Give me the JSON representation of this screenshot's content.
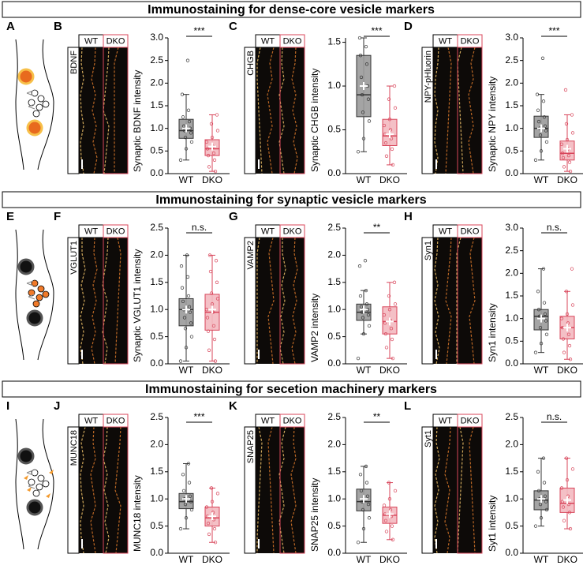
{
  "sections": [
    {
      "title": "Immunostaining for dense-core vesicle markers",
      "letter": "A"
    },
    {
      "title": "Immunostaining for synaptic vesicle markers",
      "letter": "E"
    },
    {
      "title": "Immunostaining for secetion machinery markers",
      "letter": "I"
    }
  ],
  "chart_data": [
    {
      "type": "box",
      "letter": "B",
      "image_label": "BDNF",
      "image_groups": [
        "WT",
        "DKO"
      ],
      "ylabel": "Synaptic BDNF intensity",
      "categories": [
        "WT",
        "DKO"
      ],
      "colors": [
        "#9a9a9a",
        "#f3b9c0"
      ],
      "edge_colors": [
        "#333333",
        "#d8455a"
      ],
      "significance": "***",
      "ylim": [
        0,
        3
      ],
      "yticks": [
        {
          "value": 0,
          "label": "0.0"
        },
        {
          "value": 0.5,
          "label": "0.5"
        },
        {
          "value": 1,
          "label": "1.0"
        },
        {
          "value": 1.5,
          "label": "1.5"
        },
        {
          "value": 2,
          "label": "2.0"
        },
        {
          "value": 2.5,
          "label": "2.5"
        },
        {
          "value": 3,
          "label": "3.0"
        }
      ],
      "boxes": [
        {
          "whisker_low": 0.3,
          "q1": 0.78,
          "median": 0.95,
          "q3": 1.2,
          "whisker_high": 1.75,
          "mean": 1.0,
          "points": [
            0.3,
            0.55,
            0.7,
            0.8,
            0.9,
            0.95,
            1.0,
            1.05,
            1.15,
            1.25,
            1.4,
            1.75,
            2.5
          ]
        },
        {
          "whisker_low": 0.05,
          "q1": 0.4,
          "median": 0.55,
          "q3": 0.75,
          "whisker_high": 1.3,
          "mean": 0.6,
          "points": [
            0.05,
            0.15,
            0.3,
            0.4,
            0.45,
            0.55,
            0.6,
            0.7,
            0.8,
            0.95,
            1.1,
            1.3
          ]
        }
      ]
    },
    {
      "type": "box",
      "letter": "C",
      "image_label": "CHGB",
      "image_groups": [
        "WT",
        "DKO"
      ],
      "ylabel": "Synaptic CHGB intensity",
      "categories": [
        "WT",
        "DKO"
      ],
      "colors": [
        "#9a9a9a",
        "#f3b9c0"
      ],
      "edge_colors": [
        "#333333",
        "#d8455a"
      ],
      "significance": "***",
      "ylim": [
        0,
        1.55
      ],
      "yticks": [
        {
          "value": 0,
          "label": "0.0"
        },
        {
          "value": 0.5,
          "label": "0.5"
        },
        {
          "value": 1,
          "label": "1.0"
        },
        {
          "value": 1.5,
          "label": "1.5"
        }
      ],
      "boxes": [
        {
          "whisker_low": 0.25,
          "q1": 0.65,
          "median": 0.9,
          "q3": 1.35,
          "whisker_high": 1.55,
          "mean": 1.0,
          "points": [
            0.25,
            0.4,
            0.6,
            0.7,
            0.85,
            0.9,
            1.0,
            1.1,
            1.25,
            1.35,
            1.45,
            1.55
          ]
        },
        {
          "whisker_low": 0.1,
          "q1": 0.32,
          "median": 0.43,
          "q3": 0.62,
          "whisker_high": 1.0,
          "mean": 0.45,
          "points": [
            0.1,
            0.2,
            0.28,
            0.35,
            0.4,
            0.45,
            0.5,
            0.55,
            0.62,
            0.75,
            0.85,
            1.0
          ]
        }
      ]
    },
    {
      "type": "box",
      "letter": "D",
      "image_label": "NPY-pHluorin",
      "image_groups": [
        "WT",
        "DKO"
      ],
      "ylabel": "Synaptic NPY intensity",
      "categories": [
        "WT",
        "DKO"
      ],
      "colors": [
        "#9a9a9a",
        "#f3b9c0"
      ],
      "edge_colors": [
        "#333333",
        "#d8455a"
      ],
      "significance": "***",
      "ylim": [
        0,
        3
      ],
      "yticks": [
        {
          "value": 0,
          "label": "0.0"
        },
        {
          "value": 0.5,
          "label": "0.5"
        },
        {
          "value": 1,
          "label": "1.0"
        },
        {
          "value": 1.5,
          "label": "1.5"
        },
        {
          "value": 2,
          "label": "2.0"
        },
        {
          "value": 2.5,
          "label": "2.5"
        },
        {
          "value": 3,
          "label": "3.0"
        }
      ],
      "boxes": [
        {
          "whisker_low": 0.3,
          "q1": 0.8,
          "median": 1.0,
          "q3": 1.27,
          "whisker_high": 1.75,
          "mean": 1.0,
          "points": [
            0.3,
            0.5,
            0.7,
            0.85,
            0.95,
            1.0,
            1.05,
            1.15,
            1.25,
            1.4,
            1.6,
            1.75,
            2.55
          ]
        },
        {
          "whisker_low": 0.05,
          "q1": 0.3,
          "median": 0.45,
          "q3": 0.72,
          "whisker_high": 1.3,
          "mean": 0.55,
          "points": [
            0.05,
            0.15,
            0.25,
            0.35,
            0.4,
            0.45,
            0.55,
            0.65,
            0.75,
            0.9,
            1.1,
            1.3,
            1.85
          ]
        }
      ]
    },
    {
      "type": "box",
      "letter": "F",
      "image_label": "VGLUT1",
      "image_groups": [
        "WT",
        "DKO"
      ],
      "ylabel": "Synaptic VGLUT1 intensity",
      "categories": [
        "WT",
        "DKO"
      ],
      "colors": [
        "#9a9a9a",
        "#f3b9c0"
      ],
      "edge_colors": [
        "#333333",
        "#d8455a"
      ],
      "significance": "n.s.",
      "ylim": [
        0,
        2.5
      ],
      "yticks": [
        {
          "value": 0,
          "label": "0.0"
        },
        {
          "value": 0.5,
          "label": "0.5"
        },
        {
          "value": 1,
          "label": "1.0"
        },
        {
          "value": 1.5,
          "label": "1.5"
        },
        {
          "value": 2,
          "label": "2.0"
        },
        {
          "value": 2.5,
          "label": "2.5"
        }
      ],
      "boxes": [
        {
          "whisker_low": 0.05,
          "q1": 0.7,
          "median": 1.0,
          "q3": 1.2,
          "whisker_high": 2.0,
          "mean": 1.0,
          "points": [
            0.05,
            0.3,
            0.5,
            0.65,
            0.75,
            0.85,
            0.95,
            1.0,
            1.05,
            1.15,
            1.25,
            1.4,
            1.6,
            1.8,
            2.0
          ]
        },
        {
          "whisker_low": 0.05,
          "q1": 0.62,
          "median": 0.95,
          "q3": 1.28,
          "whisker_high": 2.0,
          "mean": 1.0,
          "points": [
            0.05,
            0.25,
            0.45,
            0.6,
            0.7,
            0.85,
            0.95,
            1.0,
            1.1,
            1.2,
            1.3,
            1.5,
            1.7,
            1.9,
            2.0
          ]
        }
      ]
    },
    {
      "type": "box",
      "letter": "G",
      "image_label": "VAMP2",
      "image_groups": [
        "WT",
        "DKO"
      ],
      "ylabel": "VAMP2 intensity",
      "categories": [
        "WT",
        "DKO"
      ],
      "colors": [
        "#9a9a9a",
        "#f3b9c0"
      ],
      "edge_colors": [
        "#333333",
        "#d8455a"
      ],
      "significance": "**",
      "ylim": [
        0,
        2.5
      ],
      "yticks": [
        {
          "value": 0,
          "label": "0.0"
        },
        {
          "value": 0.5,
          "label": "0.5"
        },
        {
          "value": 1,
          "label": "1.0"
        },
        {
          "value": 1.5,
          "label": "1.5"
        },
        {
          "value": 2,
          "label": "2.0"
        },
        {
          "value": 2.5,
          "label": "2.5"
        }
      ],
      "boxes": [
        {
          "whisker_low": 0.55,
          "q1": 0.8,
          "median": 0.95,
          "q3": 1.1,
          "whisker_high": 1.35,
          "mean": 1.0,
          "points": [
            0.1,
            0.55,
            0.7,
            0.85,
            0.9,
            0.95,
            1.0,
            1.05,
            1.1,
            1.25,
            1.35,
            1.8,
            1.9
          ]
        },
        {
          "whisker_low": 0.1,
          "q1": 0.55,
          "median": 0.78,
          "q3": 1.05,
          "whisker_high": 1.5,
          "mean": 0.78,
          "points": [
            0.1,
            0.3,
            0.45,
            0.55,
            0.65,
            0.75,
            0.8,
            0.9,
            1.0,
            1.1,
            1.25,
            1.5
          ]
        }
      ]
    },
    {
      "type": "box",
      "letter": "H",
      "image_label": "Syn1",
      "image_groups": [
        "WT",
        "DKO"
      ],
      "ylabel": "Syn1 intensity",
      "categories": [
        "WT",
        "DKO"
      ],
      "colors": [
        "#9a9a9a",
        "#f3b9c0"
      ],
      "edge_colors": [
        "#333333",
        "#d8455a"
      ],
      "significance": "n.s.",
      "ylim": [
        0,
        3
      ],
      "yticks": [
        {
          "value": 0,
          "label": "0.0"
        },
        {
          "value": 0.5,
          "label": "0.5"
        },
        {
          "value": 1,
          "label": "1.0"
        },
        {
          "value": 1.5,
          "label": "1.5"
        },
        {
          "value": 2,
          "label": "2.0"
        },
        {
          "value": 2.5,
          "label": "2.5"
        },
        {
          "value": 3,
          "label": "3.0"
        }
      ],
      "boxes": [
        {
          "whisker_low": 0.25,
          "q1": 0.75,
          "median": 1.05,
          "q3": 1.2,
          "whisker_high": 2.1,
          "mean": 1.0,
          "points": [
            0.25,
            0.45,
            0.65,
            0.8,
            0.95,
            1.05,
            1.1,
            1.2,
            1.35,
            1.6,
            2.1
          ]
        },
        {
          "whisker_low": 0.1,
          "q1": 0.55,
          "median": 0.8,
          "q3": 1.05,
          "whisker_high": 1.6,
          "mean": 0.8,
          "points": [
            0.1,
            0.25,
            0.4,
            0.55,
            0.65,
            0.8,
            0.9,
            1.0,
            1.1,
            1.3,
            1.6,
            2.1
          ]
        }
      ]
    },
    {
      "type": "box",
      "letter": "J",
      "image_label": "MUNC18",
      "image_groups": [
        "WT",
        "DKO"
      ],
      "ylabel": "MUNC18 intensity",
      "categories": [
        "WT",
        "DKO"
      ],
      "colors": [
        "#9a9a9a",
        "#f3b9c0"
      ],
      "edge_colors": [
        "#333333",
        "#d8455a"
      ],
      "significance": "***",
      "ylim": [
        0,
        2.5
      ],
      "yticks": [
        {
          "value": 0,
          "label": "0.0"
        },
        {
          "value": 0.5,
          "label": "0.5"
        },
        {
          "value": 1,
          "label": "1.0"
        },
        {
          "value": 1.5,
          "label": "1.5"
        },
        {
          "value": 2,
          "label": "2.0"
        },
        {
          "value": 2.5,
          "label": "2.5"
        }
      ],
      "boxes": [
        {
          "whisker_low": 0.45,
          "q1": 0.82,
          "median": 0.95,
          "q3": 1.1,
          "whisker_high": 1.65,
          "mean": 1.0,
          "points": [
            0.45,
            0.65,
            0.8,
            0.9,
            0.95,
            1.0,
            1.05,
            1.15,
            1.3,
            1.45,
            1.65
          ]
        },
        {
          "whisker_low": 0.2,
          "q1": 0.5,
          "median": 0.65,
          "q3": 0.85,
          "whisker_high": 1.2,
          "mean": 0.68,
          "points": [
            0.2,
            0.35,
            0.45,
            0.55,
            0.62,
            0.68,
            0.75,
            0.85,
            0.95,
            1.1,
            1.2
          ]
        }
      ]
    },
    {
      "type": "box",
      "letter": "K",
      "image_label": "SNAP25",
      "image_groups": [
        "WT",
        "DKO"
      ],
      "ylabel": "SNAP25 intensity",
      "categories": [
        "WT",
        "DKO"
      ],
      "colors": [
        "#9a9a9a",
        "#f3b9c0"
      ],
      "edge_colors": [
        "#333333",
        "#d8455a"
      ],
      "significance": "**",
      "ylim": [
        0,
        2.5
      ],
      "yticks": [
        {
          "value": 0,
          "label": "0.0"
        },
        {
          "value": 0.5,
          "label": "0.5"
        },
        {
          "value": 1,
          "label": "1.0"
        },
        {
          "value": 1.5,
          "label": "1.5"
        },
        {
          "value": 2,
          "label": "2.0"
        },
        {
          "value": 2.5,
          "label": "2.5"
        }
      ],
      "boxes": [
        {
          "whisker_low": 0.2,
          "q1": 0.78,
          "median": 0.95,
          "q3": 1.18,
          "whisker_high": 1.6,
          "mean": 1.0,
          "points": [
            0.2,
            0.45,
            0.65,
            0.8,
            0.9,
            0.95,
            1.05,
            1.15,
            1.3,
            1.45,
            1.6
          ]
        },
        {
          "whisker_low": 0.25,
          "q1": 0.55,
          "median": 0.7,
          "q3": 0.85,
          "whisker_high": 1.3,
          "mean": 0.72,
          "points": [
            0.25,
            0.4,
            0.5,
            0.6,
            0.68,
            0.72,
            0.8,
            0.88,
            1.0,
            1.15,
            1.3
          ]
        }
      ]
    },
    {
      "type": "box",
      "letter": "L",
      "image_label": "Syt1",
      "image_groups": [
        "WT",
        "DKO"
      ],
      "ylabel": "Syt1 intensity",
      "categories": [
        "WT",
        "DKO"
      ],
      "colors": [
        "#9a9a9a",
        "#f3b9c0"
      ],
      "edge_colors": [
        "#333333",
        "#d8455a"
      ],
      "significance": "n.s.",
      "ylim": [
        0,
        2.5
      ],
      "yticks": [
        {
          "value": 0,
          "label": "0.0"
        },
        {
          "value": 0.5,
          "label": "0.5"
        },
        {
          "value": 1,
          "label": "1.0"
        },
        {
          "value": 1.5,
          "label": "1.5"
        },
        {
          "value": 2,
          "label": "2.0"
        },
        {
          "value": 2.5,
          "label": "2.5"
        }
      ],
      "boxes": [
        {
          "whisker_low": 0.5,
          "q1": 0.8,
          "median": 0.98,
          "q3": 1.15,
          "whisker_high": 1.75,
          "mean": 1.0,
          "points": [
            0.5,
            0.65,
            0.8,
            0.9,
            0.95,
            1.0,
            1.05,
            1.15,
            1.3,
            1.5,
            1.75
          ]
        },
        {
          "whisker_low": 0.45,
          "q1": 0.75,
          "median": 0.92,
          "q3": 1.2,
          "whisker_high": 1.75,
          "mean": 0.98,
          "points": [
            0.45,
            0.6,
            0.75,
            0.85,
            0.9,
            0.95,
            1.05,
            1.2,
            1.35,
            1.55,
            1.75
          ]
        }
      ]
    }
  ]
}
